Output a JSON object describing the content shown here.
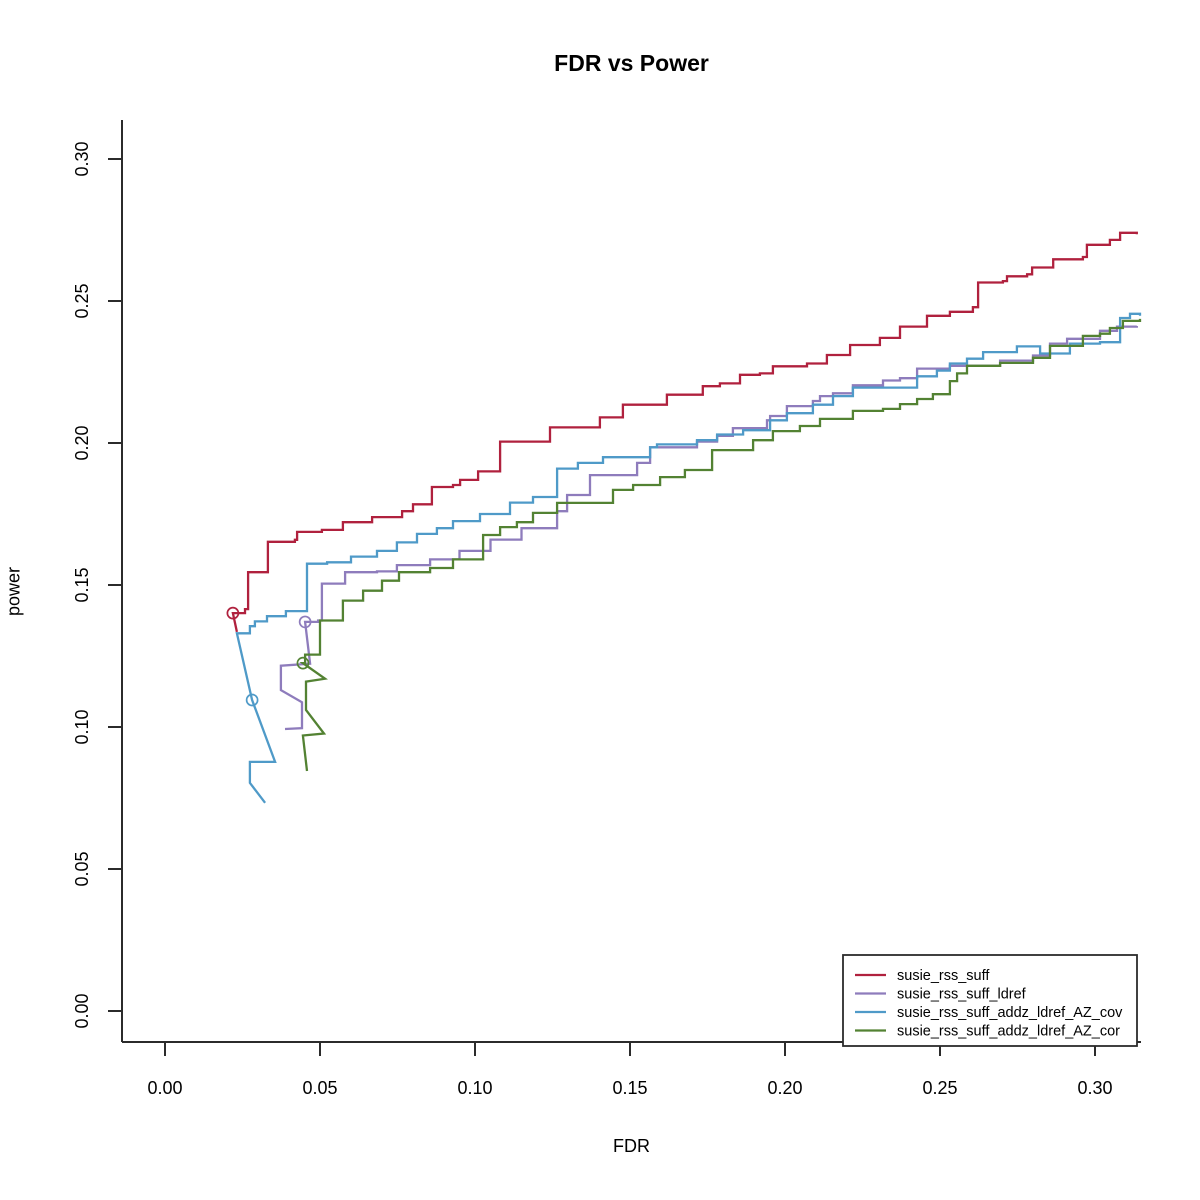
{
  "title": "FDR vs Power",
  "chart_data": {
    "type": "line",
    "title": "FDR vs Power",
    "xlabel": "FDR",
    "ylabel": "power",
    "xlim": [
      0,
      0.315
    ],
    "ylim": [
      0,
      0.31
    ],
    "grid": false,
    "line_style": "step-hv",
    "xtick_labels": [
      "0.00",
      "0.05",
      "0.10",
      "0.15",
      "0.20",
      "0.25",
      "0.30"
    ],
    "ytick_labels": [
      "0.00",
      "0.05",
      "0.10",
      "0.15",
      "0.20",
      "0.25",
      "0.30"
    ],
    "legend_position": "bottom-right",
    "axis_color": "#2b2b2b",
    "series": [
      {
        "name": "susie_rss_suff",
        "color": "#B0213E",
        "marker": [
          0.0219,
          0.1401
        ],
        "tail": [
          [
            0.0232,
            0.1335
          ],
          [
            0.0219,
            0.1401
          ]
        ],
        "points": [
          [
            0.0258,
            0.1415
          ],
          [
            0.0268,
            0.1545
          ],
          [
            0.0332,
            0.1652
          ],
          [
            0.0419,
            0.1659
          ],
          [
            0.0426,
            0.1687
          ],
          [
            0.0506,
            0.1694
          ],
          [
            0.0574,
            0.1721
          ],
          [
            0.0668,
            0.1739
          ],
          [
            0.0765,
            0.176
          ],
          [
            0.08,
            0.1784
          ],
          [
            0.0861,
            0.1845
          ],
          [
            0.0929,
            0.1852
          ],
          [
            0.0952,
            0.187
          ],
          [
            0.101,
            0.19
          ],
          [
            0.1081,
            0.2005
          ],
          [
            0.1242,
            0.2055
          ],
          [
            0.1403,
            0.209
          ],
          [
            0.1477,
            0.2135
          ],
          [
            0.1619,
            0.217
          ],
          [
            0.1735,
            0.22
          ],
          [
            0.179,
            0.221
          ],
          [
            0.1855,
            0.224
          ],
          [
            0.1919,
            0.2245
          ],
          [
            0.1961,
            0.227
          ],
          [
            0.2071,
            0.228
          ],
          [
            0.2135,
            0.231
          ],
          [
            0.221,
            0.2345
          ],
          [
            0.2306,
            0.237
          ],
          [
            0.2371,
            0.241
          ],
          [
            0.2458,
            0.2448
          ],
          [
            0.2532,
            0.2462
          ],
          [
            0.2606,
            0.2478
          ],
          [
            0.2623,
            0.2565
          ],
          [
            0.2703,
            0.257
          ],
          [
            0.2716,
            0.2587
          ],
          [
            0.2781,
            0.2594
          ],
          [
            0.2797,
            0.2618
          ],
          [
            0.2865,
            0.2647
          ],
          [
            0.2961,
            0.2655
          ],
          [
            0.2974,
            0.2698
          ],
          [
            0.3048,
            0.2715
          ],
          [
            0.3081,
            0.274
          ],
          [
            0.3135,
            0.2735
          ]
        ]
      },
      {
        "name": "susie_rss_suff_ldref",
        "color": "#8E7CBC",
        "marker": [
          0.0452,
          0.137
        ],
        "tail": [
          [
            0.0387,
            0.0993
          ],
          [
            0.0442,
            0.0996
          ],
          [
            0.0442,
            0.1087
          ],
          [
            0.0374,
            0.113
          ],
          [
            0.0374,
            0.1216
          ],
          [
            0.0468,
            0.1223
          ],
          [
            0.0452,
            0.137
          ]
        ],
        "points": [
          [
            0.0494,
            0.1375
          ],
          [
            0.0506,
            0.1443
          ],
          [
            0.0506,
            0.1505
          ],
          [
            0.0581,
            0.1545
          ],
          [
            0.0684,
            0.1548
          ],
          [
            0.0748,
            0.157
          ],
          [
            0.0855,
            0.159
          ],
          [
            0.095,
            0.162
          ],
          [
            0.105,
            0.166
          ],
          [
            0.115,
            0.17
          ],
          [
            0.1265,
            0.176
          ],
          [
            0.1297,
            0.1817
          ],
          [
            0.1371,
            0.1887
          ],
          [
            0.1523,
            0.193
          ],
          [
            0.1565,
            0.1985
          ],
          [
            0.1716,
            0.2005
          ],
          [
            0.1781,
            0.2025
          ],
          [
            0.1832,
            0.2052
          ],
          [
            0.1942,
            0.208
          ],
          [
            0.1952,
            0.2095
          ],
          [
            0.2006,
            0.213
          ],
          [
            0.209,
            0.2148
          ],
          [
            0.2113,
            0.2165
          ],
          [
            0.2155,
            0.2175
          ],
          [
            0.2219,
            0.2203
          ],
          [
            0.2316,
            0.222
          ],
          [
            0.2371,
            0.2228
          ],
          [
            0.2426,
            0.2262
          ],
          [
            0.2532,
            0.2272
          ],
          [
            0.2694,
            0.229
          ],
          [
            0.28,
            0.2308
          ],
          [
            0.2855,
            0.235
          ],
          [
            0.291,
            0.2367
          ],
          [
            0.3016,
            0.2395
          ],
          [
            0.3071,
            0.241
          ],
          [
            0.3135,
            0.2412
          ]
        ]
      },
      {
        "name": "susie_rss_suff_addz_ldref_AZ_cov",
        "color": "#4F9AC8",
        "marker": [
          0.0281,
          0.1095
        ],
        "tail": [
          [
            0.0323,
            0.0733
          ],
          [
            0.0274,
            0.0803
          ],
          [
            0.0274,
            0.0877
          ],
          [
            0.0355,
            0.0877
          ],
          [
            0.0281,
            0.1095
          ],
          [
            0.0232,
            0.133
          ]
        ],
        "points": [
          [
            0.0274,
            0.1355
          ],
          [
            0.029,
            0.1372
          ],
          [
            0.0329,
            0.139
          ],
          [
            0.039,
            0.1408
          ],
          [
            0.0458,
            0.1575
          ],
          [
            0.0523,
            0.158
          ],
          [
            0.06,
            0.16
          ],
          [
            0.0684,
            0.162
          ],
          [
            0.0748,
            0.165
          ],
          [
            0.0813,
            0.168
          ],
          [
            0.0877,
            0.17
          ],
          [
            0.0929,
            0.1725
          ],
          [
            0.1016,
            0.175
          ],
          [
            0.1113,
            0.179
          ],
          [
            0.1187,
            0.181
          ],
          [
            0.1265,
            0.191
          ],
          [
            0.1332,
            0.193
          ],
          [
            0.1413,
            0.195
          ],
          [
            0.1565,
            0.1985
          ],
          [
            0.1587,
            0.1995
          ],
          [
            0.1716,
            0.201
          ],
          [
            0.1781,
            0.203
          ],
          [
            0.1865,
            0.2045
          ],
          [
            0.1952,
            0.208
          ],
          [
            0.2006,
            0.2105
          ],
          [
            0.209,
            0.2135
          ],
          [
            0.2155,
            0.2165
          ],
          [
            0.2219,
            0.2195
          ],
          [
            0.2426,
            0.2235
          ],
          [
            0.249,
            0.2255
          ],
          [
            0.2532,
            0.228
          ],
          [
            0.2587,
            0.2297
          ],
          [
            0.2639,
            0.232
          ],
          [
            0.2748,
            0.234
          ],
          [
            0.2823,
            0.2315
          ],
          [
            0.2919,
            0.235
          ],
          [
            0.3016,
            0.2355
          ],
          [
            0.3081,
            0.244
          ],
          [
            0.3113,
            0.2455
          ],
          [
            0.3145,
            0.2448
          ]
        ]
      },
      {
        "name": "susie_rss_suff_addz_ldref_AZ_cor",
        "color": "#538233",
        "marker": [
          0.0445,
          0.1225
        ],
        "tail": [
          [
            0.0458,
            0.0845
          ],
          [
            0.0445,
            0.097
          ],
          [
            0.0513,
            0.0977
          ],
          [
            0.0455,
            0.106
          ],
          [
            0.0455,
            0.116
          ],
          [
            0.0516,
            0.117
          ],
          [
            0.0445,
            0.1225
          ]
        ],
        "points": [
          [
            0.0452,
            0.1255
          ],
          [
            0.05,
            0.1375
          ],
          [
            0.0574,
            0.1445
          ],
          [
            0.0639,
            0.148
          ],
          [
            0.07,
            0.1515
          ],
          [
            0.0755,
            0.1545
          ],
          [
            0.0855,
            0.156
          ],
          [
            0.0929,
            0.159
          ],
          [
            0.1026,
            0.1676
          ],
          [
            0.1081,
            0.1704
          ],
          [
            0.1135,
            0.1721
          ],
          [
            0.1187,
            0.1754
          ],
          [
            0.1265,
            0.1789
          ],
          [
            0.1445,
            0.1835
          ],
          [
            0.151,
            0.1852
          ],
          [
            0.1597,
            0.188
          ],
          [
            0.1677,
            0.1905
          ],
          [
            0.1765,
            0.1975
          ],
          [
            0.1897,
            0.201
          ],
          [
            0.1961,
            0.2042
          ],
          [
            0.2048,
            0.206
          ],
          [
            0.2113,
            0.2085
          ],
          [
            0.2219,
            0.2113
          ],
          [
            0.2316,
            0.212
          ],
          [
            0.2371,
            0.2137
          ],
          [
            0.2426,
            0.2155
          ],
          [
            0.2477,
            0.2172
          ],
          [
            0.2532,
            0.2218
          ],
          [
            0.2555,
            0.2245
          ],
          [
            0.2587,
            0.2272
          ],
          [
            0.2694,
            0.2282
          ],
          [
            0.28,
            0.23
          ],
          [
            0.2855,
            0.2342
          ],
          [
            0.2961,
            0.2377
          ],
          [
            0.3016,
            0.2385
          ],
          [
            0.3048,
            0.2405
          ],
          [
            0.309,
            0.243
          ],
          [
            0.3145,
            0.2437
          ]
        ]
      }
    ]
  }
}
